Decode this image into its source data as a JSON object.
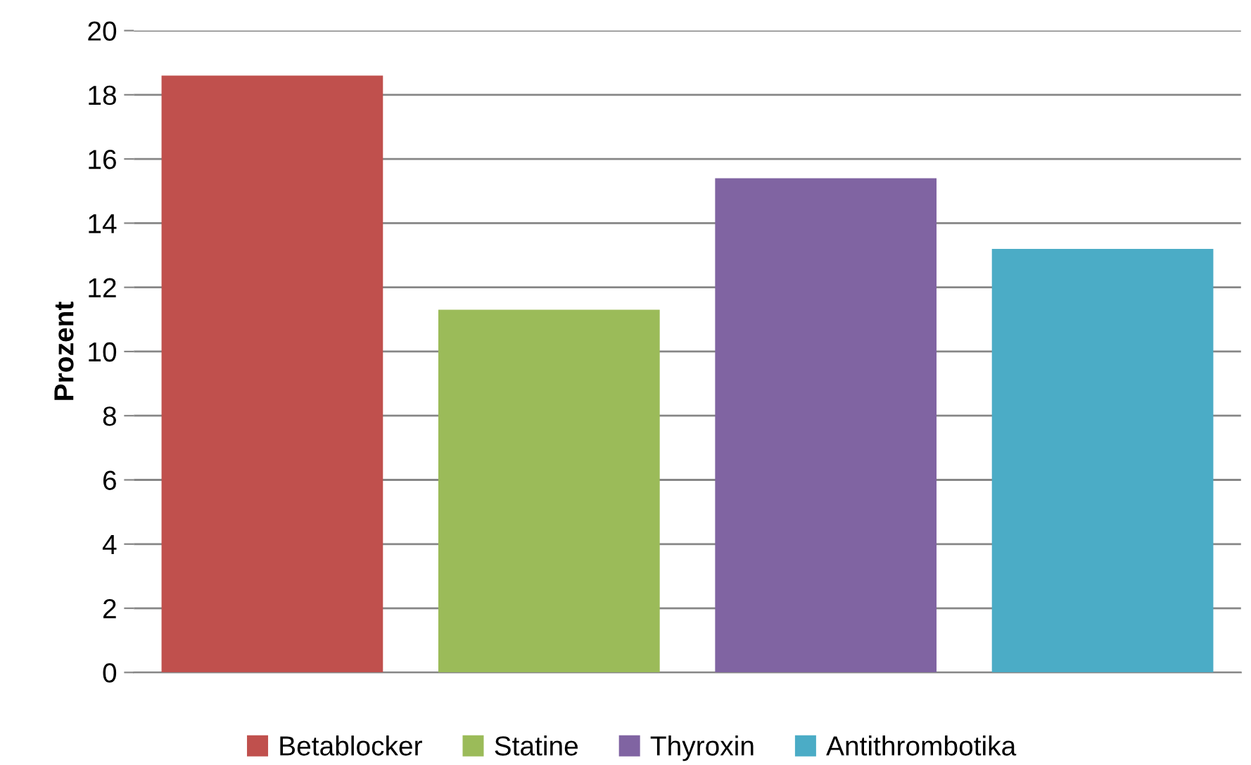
{
  "chart_data": {
    "type": "bar",
    "ylabel": "Prozent",
    "categories": [
      null,
      null,
      null,
      null
    ],
    "series": [
      {
        "name": "Betablocker",
        "color": "#c0504d",
        "values": [
          18.6,
          null,
          null,
          null
        ]
      },
      {
        "name": "Statine",
        "color": "#9bbb59",
        "values": [
          null,
          11.3,
          null,
          null
        ]
      },
      {
        "name": "Thyroxin",
        "color": "#8064a2",
        "values": [
          null,
          null,
          15.4,
          null
        ]
      },
      {
        "name": "Antithrombotika",
        "color": "#4bacc6",
        "values": [
          null,
          null,
          null,
          13.2
        ]
      }
    ],
    "ylim": [
      0,
      20
    ],
    "yticks": [
      0,
      2,
      4,
      6,
      8,
      10,
      12,
      14,
      16,
      18,
      20
    ],
    "grid": "y",
    "legend": "bottom"
  }
}
